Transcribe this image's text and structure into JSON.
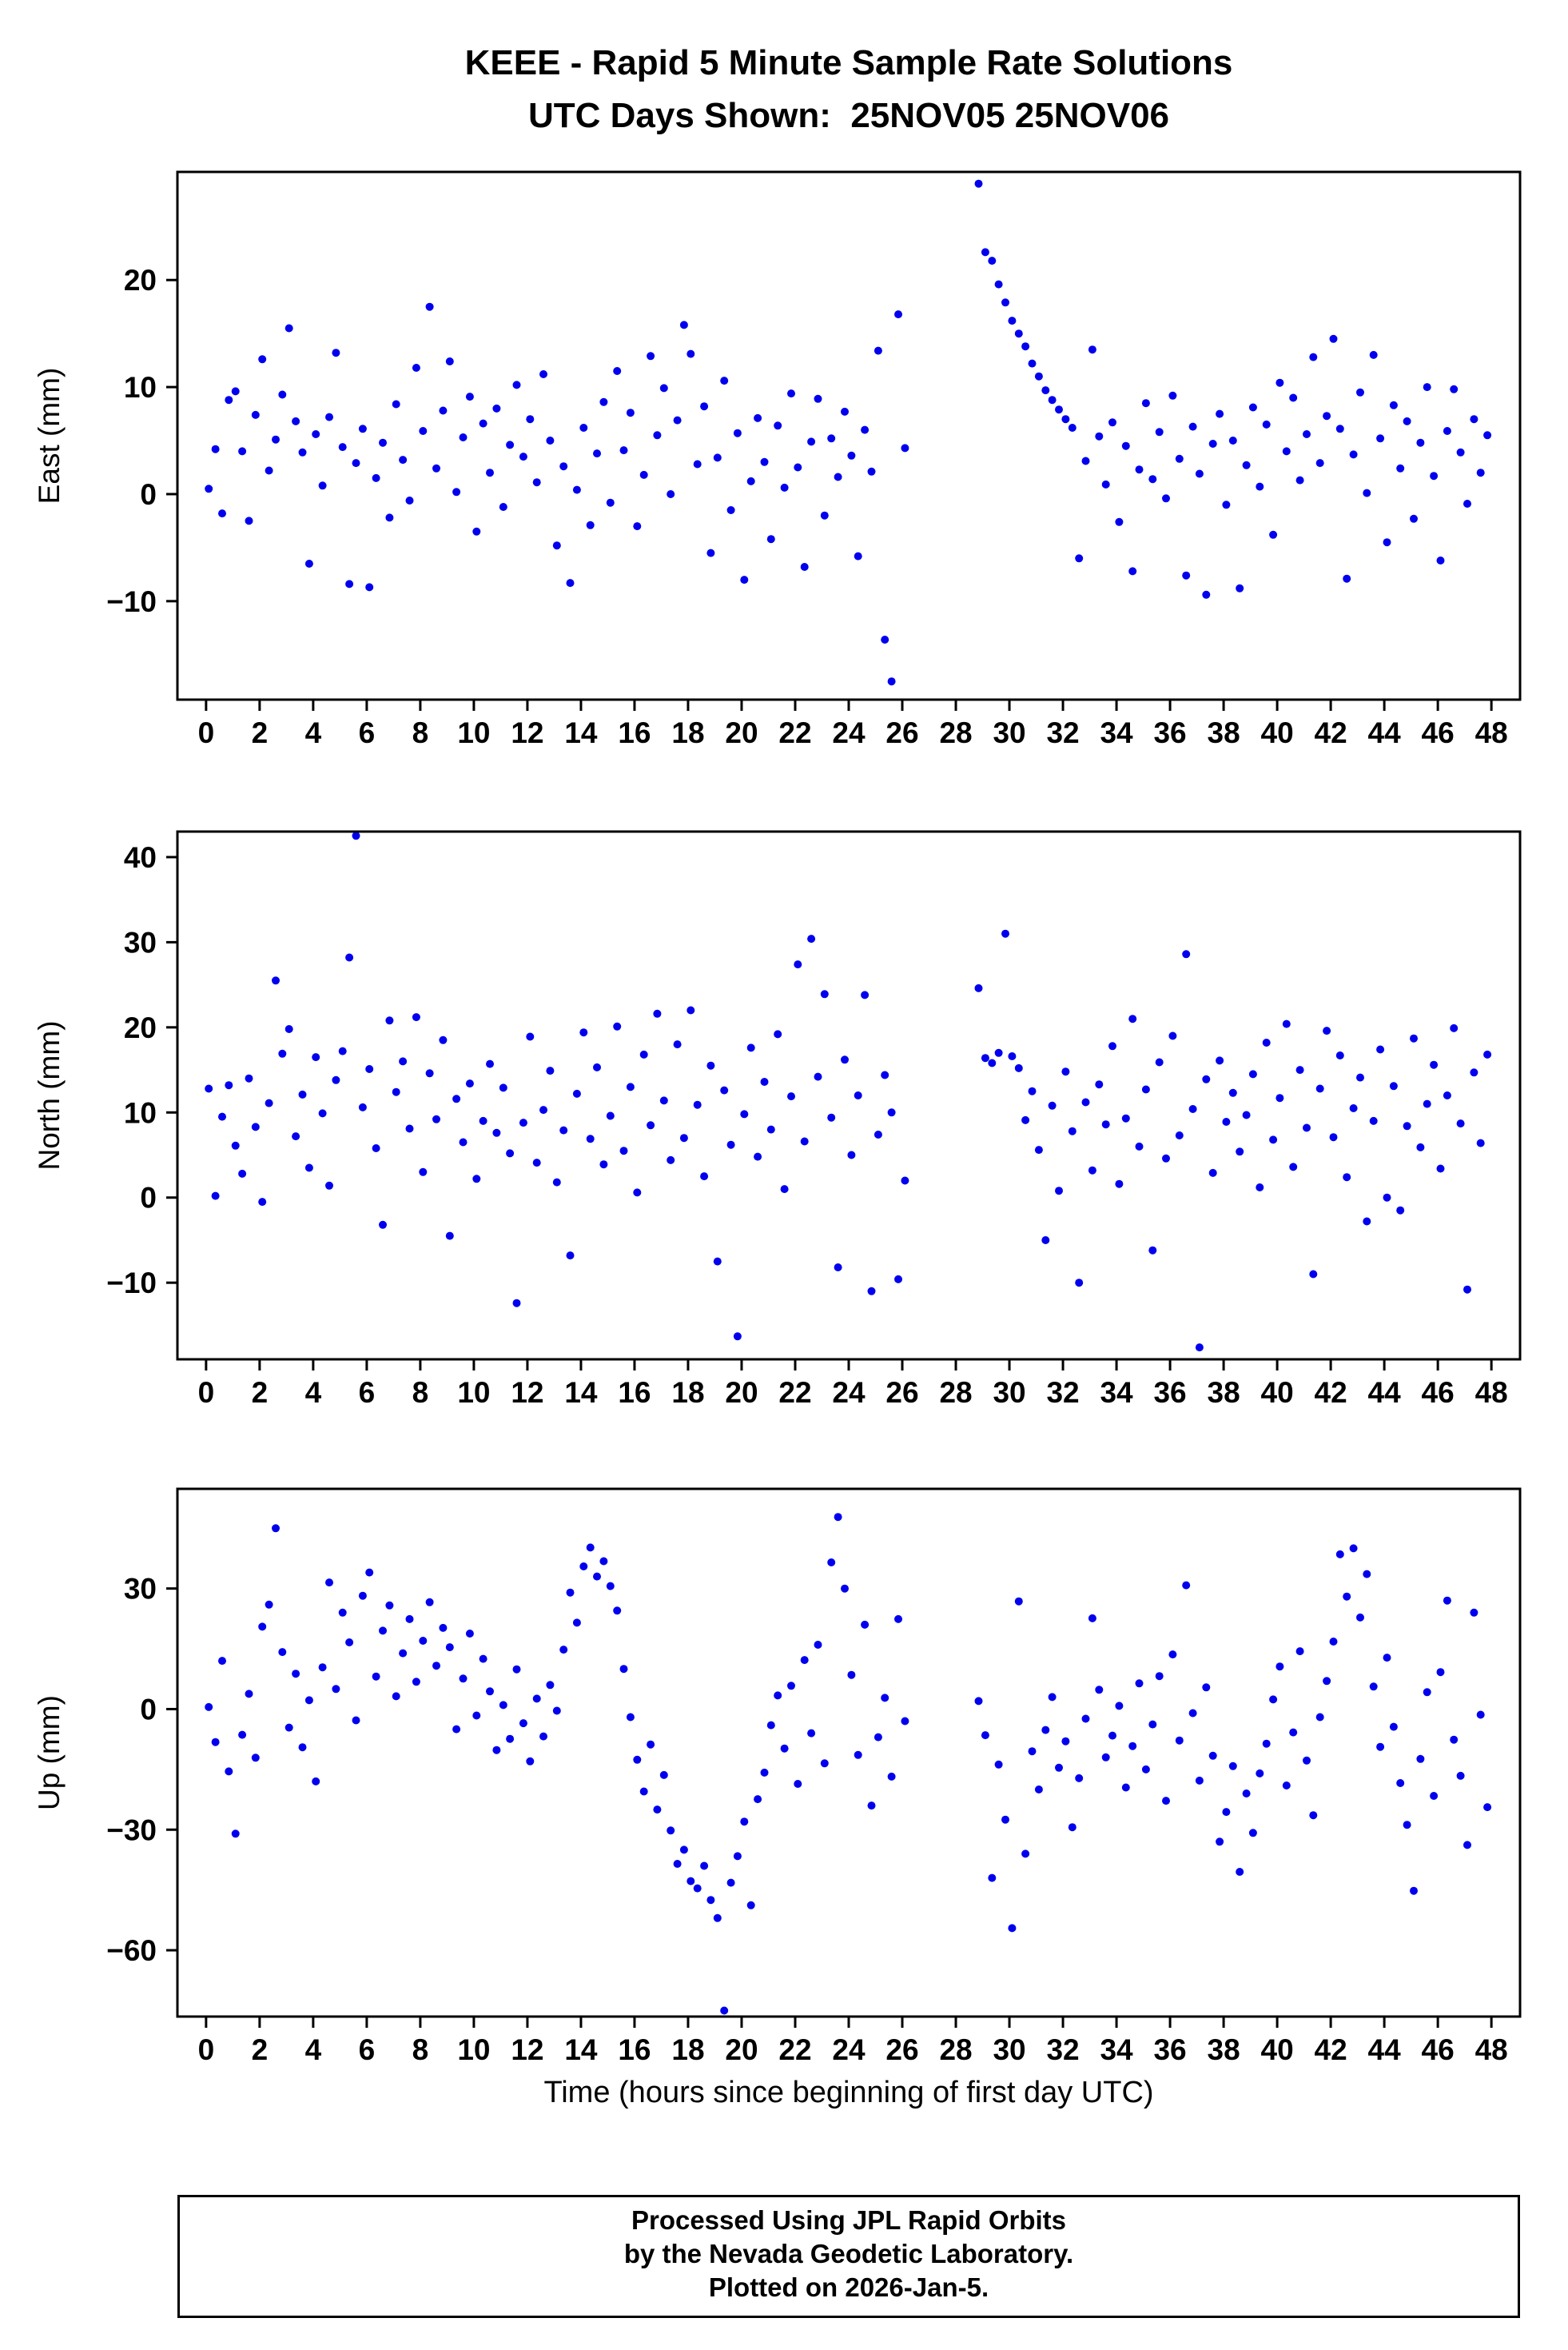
{
  "title": {
    "line1": "KEEE - Rapid 5 Minute Sample Rate Solutions",
    "line2": "UTC Days Shown:  25NOV05 25NOV06"
  },
  "footer": {
    "line1": "Processed Using JPL Rapid Orbits",
    "line2": "by the Nevada Geodetic Laboratory.",
    "line3": "Plotted on 2026-Jan-5."
  },
  "point_color": "#0000EE",
  "chart_data": {
    "type": "scatter",
    "station": "KEEE",
    "x_axis": {
      "label": "Time (hours since beginning of first day UTC)",
      "xlim": [
        -1.07,
        49.07
      ],
      "xticks": [
        0,
        2,
        4,
        6,
        8,
        10,
        12,
        14,
        16,
        18,
        20,
        22,
        24,
        26,
        28,
        30,
        32,
        34,
        36,
        38,
        40,
        42,
        44,
        46,
        48
      ]
    },
    "sampling": {
      "x_start": 0.1,
      "x_step": 0.25,
      "gap_hours": [
        26.3,
        28.8
      ]
    },
    "panels": [
      {
        "name": "East",
        "ylabel": "East (mm)",
        "ylim": [
          -19.2,
          30.1
        ],
        "yticks": [
          20,
          10,
          0,
          -10
        ],
        "y": [
          0.5,
          4.2,
          -1.8,
          8.8,
          9.6,
          4.0,
          -2.5,
          7.4,
          12.6,
          2.2,
          5.1,
          9.3,
          15.5,
          6.8,
          3.9,
          -6.5,
          5.6,
          0.8,
          7.2,
          13.2,
          4.4,
          -8.4,
          2.9,
          6.1,
          -8.7,
          1.5,
          4.8,
          -2.2,
          8.4,
          3.2,
          -0.6,
          11.8,
          5.9,
          17.5,
          2.4,
          7.8,
          12.4,
          0.2,
          5.3,
          9.1,
          -3.5,
          6.6,
          2.0,
          8.0,
          -1.2,
          4.6,
          10.2,
          3.5,
          7.0,
          1.1,
          11.2,
          5.0,
          -4.8,
          2.6,
          -8.3,
          0.4,
          6.2,
          -2.9,
          3.8,
          8.6,
          -0.8,
          11.5,
          4.1,
          7.6,
          -3.0,
          1.8,
          12.9,
          5.5,
          9.9,
          0.0,
          6.9,
          15.8,
          13.1,
          2.8,
          8.2,
          -5.5,
          3.4,
          10.6,
          -1.5,
          5.7,
          -8.0,
          1.2,
          7.1,
          3.0,
          -4.2,
          6.4,
          0.6,
          9.4,
          2.5,
          -6.8,
          4.9,
          8.9,
          -2.0,
          5.2,
          1.6,
          7.7,
          3.6,
          -5.8,
          6.0,
          2.1,
          13.4,
          -13.6,
          -17.5,
          16.8,
          4.3,
          null,
          null,
          null,
          null,
          null,
          null,
          null,
          null,
          null,
          null,
          29.0,
          22.6,
          21.8,
          19.6,
          17.9,
          16.2,
          15.0,
          13.8,
          12.2,
          11.0,
          9.7,
          8.8,
          7.9,
          7.0,
          6.2,
          -6.0,
          3.1,
          13.5,
          5.4,
          0.9,
          6.7,
          -2.6,
          4.5,
          -7.2,
          2.3,
          8.5,
          1.4,
          5.8,
          -0.4,
          9.2,
          3.3,
          -7.6,
          6.3,
          1.9,
          -9.4,
          4.7,
          7.5,
          -1.0,
          5.0,
          -8.8,
          2.7,
          8.1,
          0.7,
          6.5,
          -3.8,
          10.4,
          4.0,
          9.0,
          1.3,
          5.6,
          12.8,
          2.9,
          7.3,
          14.5,
          6.1,
          -7.9,
          3.7,
          9.5,
          0.1,
          13.0,
          5.2,
          -4.5,
          8.3,
          2.4,
          6.8,
          -2.3,
          4.8,
          10.0,
          1.7,
          -6.2,
          5.9,
          9.8,
          3.9,
          -0.9,
          7.0,
          2.0,
          5.5
        ]
      },
      {
        "name": "North",
        "ylabel": "North (mm)",
        "ylim": [
          -19.0,
          43.0
        ],
        "yticks": [
          40,
          30,
          20,
          10,
          0,
          -10
        ],
        "y": [
          12.8,
          0.2,
          9.5,
          13.2,
          6.1,
          2.8,
          14.0,
          8.3,
          -0.5,
          11.1,
          25.5,
          16.9,
          19.8,
          7.2,
          12.1,
          3.5,
          16.5,
          9.9,
          1.4,
          13.8,
          17.2,
          28.2,
          42.5,
          10.6,
          15.1,
          5.8,
          -3.2,
          20.8,
          12.4,
          16.0,
          8.1,
          21.2,
          3.0,
          14.6,
          9.2,
          18.5,
          -4.5,
          11.6,
          6.5,
          13.4,
          2.2,
          9.0,
          15.7,
          7.6,
          12.9,
          5.2,
          -12.4,
          8.8,
          18.9,
          4.1,
          10.3,
          14.9,
          1.8,
          7.9,
          -6.8,
          12.2,
          19.4,
          6.9,
          15.3,
          3.9,
          9.6,
          20.1,
          5.5,
          13.0,
          0.6,
          16.8,
          8.5,
          21.6,
          11.4,
          4.4,
          18.0,
          7.0,
          22.0,
          10.9,
          2.5,
          15.5,
          -7.5,
          12.6,
          6.2,
          -16.3,
          9.8,
          17.6,
          4.8,
          13.6,
          8.0,
          19.2,
          1.0,
          11.9,
          27.4,
          6.6,
          30.4,
          14.2,
          23.9,
          9.4,
          -8.2,
          16.2,
          5.0,
          12.0,
          23.8,
          -11.0,
          7.4,
          14.4,
          10.0,
          -9.6,
          2.0,
          null,
          null,
          null,
          null,
          null,
          null,
          null,
          null,
          null,
          null,
          24.6,
          16.4,
          15.8,
          17.0,
          31.0,
          16.6,
          15.2,
          9.1,
          12.5,
          5.6,
          -5.0,
          10.8,
          0.8,
          14.8,
          7.8,
          -10.0,
          11.2,
          3.2,
          13.3,
          8.6,
          17.8,
          1.6,
          9.3,
          21.0,
          6.0,
          12.7,
          -6.2,
          15.9,
          4.6,
          19.0,
          7.3,
          28.6,
          10.4,
          -17.6,
          13.9,
          2.9,
          16.1,
          8.9,
          12.3,
          5.4,
          9.7,
          14.5,
          1.2,
          18.2,
          6.8,
          11.7,
          20.4,
          3.6,
          15.0,
          8.2,
          -9.0,
          12.8,
          19.6,
          7.1,
          16.7,
          2.4,
          10.5,
          14.1,
          -2.8,
          9.0,
          17.4,
          0.0,
          13.1,
          -1.5,
          8.4,
          18.7,
          5.9,
          11.0,
          15.6,
          3.4,
          12.0,
          19.9,
          8.7,
          -10.8,
          14.7,
          6.4,
          16.8
        ]
      },
      {
        "name": "Up",
        "ylabel": "Up (mm)",
        "ylim": [
          -76.5,
          54.8
        ],
        "yticks": [
          30,
          0,
          -30,
          -60
        ],
        "y": [
          0.5,
          -8.2,
          12.0,
          -15.5,
          -31.0,
          -6.4,
          3.8,
          -12.1,
          20.5,
          26.0,
          45.0,
          14.2,
          -4.6,
          8.8,
          -9.5,
          2.2,
          -18.0,
          10.4,
          31.5,
          5.0,
          24.0,
          16.6,
          -2.8,
          28.2,
          34.0,
          8.1,
          19.5,
          25.8,
          3.2,
          13.9,
          22.4,
          6.8,
          17.0,
          26.6,
          10.8,
          20.2,
          15.4,
          -5.0,
          7.6,
          18.8,
          -1.6,
          12.5,
          4.4,
          -10.2,
          1.0,
          -7.4,
          9.9,
          -3.5,
          -13.0,
          2.6,
          -6.8,
          6.0,
          -0.4,
          14.8,
          29.0,
          21.5,
          35.5,
          40.2,
          33.0,
          36.8,
          30.6,
          24.5,
          10.0,
          -2.0,
          -12.6,
          -20.5,
          -8.8,
          -25.0,
          -16.4,
          -30.2,
          -38.5,
          -35.0,
          -42.8,
          -44.6,
          -39.0,
          -47.5,
          -52.0,
          -75.0,
          -43.2,
          -36.6,
          -28.0,
          -48.8,
          -22.4,
          -15.8,
          -4.0,
          3.4,
          -9.8,
          5.8,
          -18.6,
          12.2,
          -6.0,
          16.0,
          -13.5,
          36.5,
          47.8,
          30.0,
          8.5,
          -11.4,
          21.0,
          -24.0,
          -7.0,
          2.8,
          -16.8,
          22.4,
          -3.0,
          null,
          null,
          null,
          null,
          null,
          null,
          null,
          null,
          null,
          null,
          2.0,
          -6.5,
          -42.0,
          -13.8,
          -27.5,
          -54.5,
          26.8,
          -36.0,
          -10.5,
          -20.0,
          -5.2,
          3.0,
          -14.6,
          -8.0,
          -29.4,
          -17.2,
          -2.4,
          22.6,
          4.8,
          -12.0,
          -6.6,
          0.8,
          -19.5,
          -9.2,
          6.4,
          -15.0,
          -3.8,
          8.2,
          -22.8,
          13.6,
          -7.8,
          30.8,
          -1.0,
          -17.8,
          5.4,
          -11.6,
          -33.0,
          -25.6,
          -14.2,
          -40.5,
          -21.0,
          -30.8,
          -16.0,
          -8.6,
          2.4,
          10.6,
          -19.0,
          -5.8,
          14.4,
          -12.8,
          -26.4,
          -2.0,
          7.0,
          16.8,
          38.5,
          28.0,
          40.0,
          22.8,
          33.6,
          5.6,
          -9.4,
          12.8,
          -4.4,
          -18.4,
          -28.8,
          -45.2,
          -12.4,
          4.2,
          -21.6,
          9.2,
          27.0,
          -7.6,
          -16.6,
          -33.8,
          24.0,
          -1.4,
          -24.4
        ]
      }
    ]
  }
}
